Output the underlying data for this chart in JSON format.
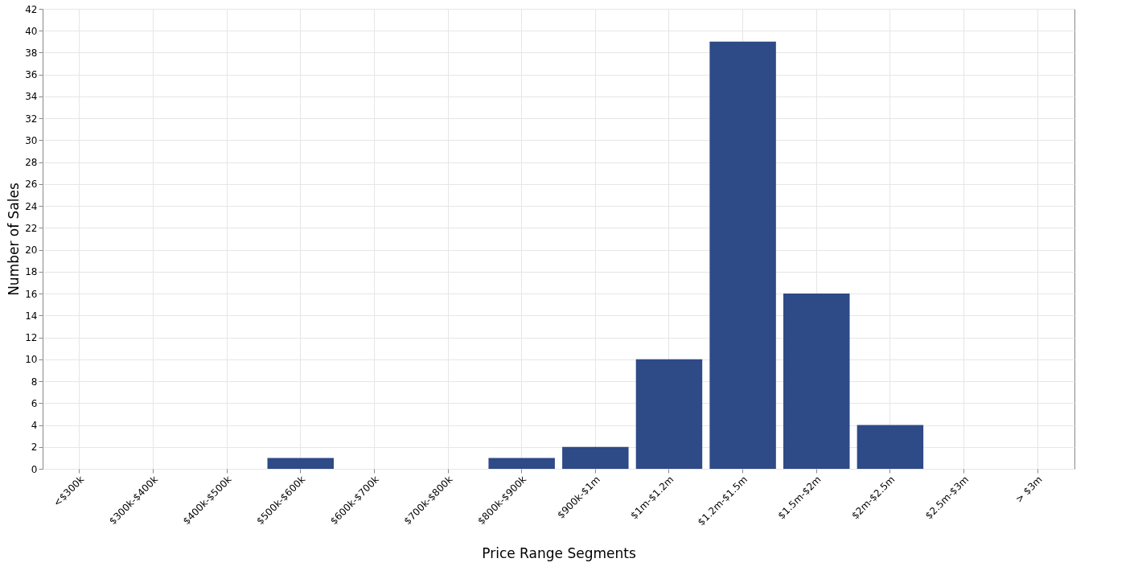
{
  "chart_data": {
    "type": "bar",
    "xlabel": "Price Range Segments",
    "ylabel": "Number of Sales",
    "categories": [
      "<$300k",
      "$300k-$400k",
      "$400k-$500k",
      "$500k-$600k",
      "$600k-$700k",
      "$700k-$800k",
      "$800k-$900k",
      "$900k-$1m",
      "$1m-$1.2m",
      "$1.2m-$1.5m",
      "$1.5m-$2m",
      "$2m-$2.5m",
      "$2.5m-$3m",
      "> $3m"
    ],
    "values": [
      0,
      0,
      0,
      1,
      0,
      0,
      1,
      2,
      10,
      39,
      16,
      4,
      0,
      0
    ],
    "color": "#2e4a87",
    "ylim": [
      0,
      42
    ],
    "yticks": [
      0,
      2,
      4,
      6,
      8,
      10,
      12,
      14,
      16,
      18,
      20,
      22,
      24,
      26,
      28,
      30,
      32,
      34,
      36,
      38,
      40,
      42
    ],
    "grid": true
  }
}
